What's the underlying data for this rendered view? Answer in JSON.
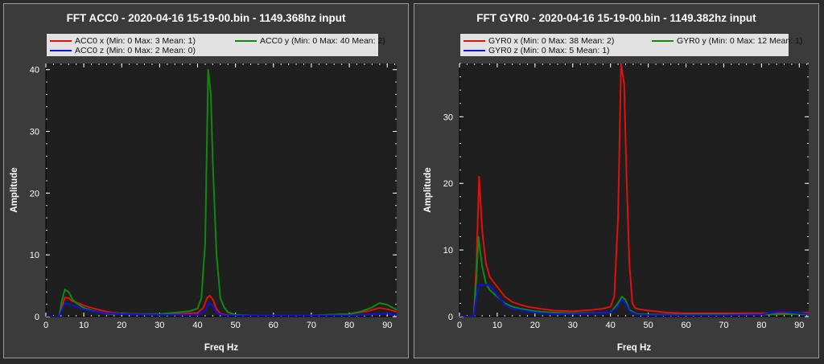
{
  "colors": {
    "background": "#2b2b2b",
    "panel": "#3b3b3b",
    "plot_area": "#1f1f1f",
    "x": "#e01010",
    "y": "#0f8a0f",
    "z": "#1010e0",
    "text": "#ffffff"
  },
  "chart_data": [
    {
      "type": "line",
      "title": "FFT ACC0 - 2020-04-16 15-19-00.bin - 1149.368hz input",
      "xlabel": "Freq Hz",
      "ylabel": "Amplitude",
      "xlim": [
        0,
        92.5
      ],
      "ylim": [
        0,
        41
      ],
      "xticks": [
        0,
        10,
        20,
        30,
        40,
        50,
        60,
        70,
        80,
        90
      ],
      "yticks": [
        0,
        10,
        20,
        30,
        40
      ],
      "legend_position": "top",
      "series": [
        {
          "name": "ACC0 x (Min: 0 Max: 3 Mean: 1)",
          "color": "#e01010",
          "x": [
            0,
            3.5,
            4.2,
            5,
            6,
            7,
            8,
            9,
            10,
            12,
            14,
            16,
            18,
            20,
            25,
            30,
            35,
            40,
            41.5,
            42.5,
            43.2,
            44,
            45,
            46,
            47,
            50,
            60,
            70,
            80,
            85,
            88,
            90,
            92.5
          ],
          "y": [
            0,
            0,
            1.5,
            3.1,
            3,
            2.5,
            2.3,
            2.1,
            1.8,
            1.4,
            1.1,
            0.8,
            0.6,
            0.5,
            0.4,
            0.4,
            0.4,
            0.6,
            1.4,
            3,
            3.4,
            2.8,
            1.2,
            0.5,
            0.3,
            0.2,
            0.2,
            0.2,
            0.4,
            0.9,
            1.4,
            1.2,
            0.8
          ]
        },
        {
          "name": "ACC0 y (Min: 0 Max: 40 Mean: 2)",
          "color": "#0f8a0f",
          "x": [
            0,
            3.5,
            4.2,
            5,
            6,
            7,
            8,
            9,
            10,
            12,
            14,
            16,
            18,
            20,
            25,
            30,
            35,
            38,
            40,
            41,
            42,
            42.8,
            43.5,
            44,
            45,
            46,
            47,
            48,
            50,
            55,
            60,
            70,
            80,
            83,
            86,
            88,
            90,
            92.5
          ],
          "y": [
            0,
            0,
            2.5,
            4.4,
            4,
            2.8,
            2.2,
            1.8,
            1.4,
            1,
            0.7,
            0.5,
            0.4,
            0.5,
            0.4,
            0.4,
            0.7,
            0.9,
            1.3,
            3,
            12,
            40,
            36,
            25,
            10,
            3,
            1.5,
            0.7,
            0.3,
            0.2,
            0.2,
            0.2,
            0.4,
            0.8,
            1.5,
            2.2,
            1.9,
            1.1
          ]
        },
        {
          "name": "ACC0 z (Min: 0 Max: 2 Mean: 0)",
          "color": "#1010e0",
          "x": [
            0,
            3.5,
            4.2,
            5,
            6,
            7,
            8,
            10,
            12,
            15,
            20,
            30,
            40,
            42,
            43,
            44,
            45,
            47,
            50,
            60,
            70,
            80,
            90,
            92.5
          ],
          "y": [
            0,
            0,
            1,
            2.2,
            2,
            1.8,
            1.6,
            1.2,
            0.9,
            0.6,
            0.4,
            0.3,
            0.3,
            0.9,
            2.2,
            1.8,
            0.6,
            0.2,
            0.2,
            0.2,
            0.2,
            0.2,
            0.5,
            0.3
          ]
        }
      ]
    },
    {
      "type": "line",
      "title": "FFT GYR0 - 2020-04-16 15-19-00.bin - 1149.382hz input",
      "xlabel": "Freq Hz",
      "ylabel": "Amplitude",
      "xlim": [
        0,
        92.5
      ],
      "ylim": [
        0,
        38
      ],
      "xticks": [
        0,
        10,
        20,
        30,
        40,
        50,
        60,
        70,
        80,
        90
      ],
      "yticks": [
        0,
        10,
        20,
        30
      ],
      "legend_position": "top",
      "series": [
        {
          "name": "GYR0 x (Min: 0 Max: 38 Mean: 2)",
          "color": "#e01010",
          "x": [
            0,
            3.8,
            4.5,
            5.2,
            6,
            7,
            8,
            9,
            10,
            12,
            14,
            16,
            18,
            20,
            25,
            30,
            35,
            38,
            40,
            41,
            42,
            42.8,
            43.6,
            44.2,
            45,
            45.8,
            46.5,
            47.5,
            50,
            55,
            60,
            70,
            80,
            85,
            90,
            92.5
          ],
          "y": [
            0,
            0,
            8,
            21,
            13,
            8,
            6,
            5.2,
            4.5,
            3,
            2.2,
            1.8,
            1.5,
            1.3,
            0.9,
            0.8,
            1,
            1.2,
            1.5,
            3,
            15,
            38,
            35,
            22,
            8,
            2,
            1.3,
            1.1,
            0.9,
            0.6,
            0.5,
            0.5,
            0.5,
            0.5,
            0.5,
            0.6
          ]
        },
        {
          "name": "GYR0 y (Min: 0 Max: 12 Mean: 1)",
          "color": "#0f8a0f",
          "x": [
            0,
            3.8,
            4.5,
            5,
            6,
            7,
            8,
            9,
            10,
            12,
            14,
            16,
            18,
            20,
            25,
            30,
            40,
            42,
            43,
            44,
            45,
            47,
            50,
            60,
            70,
            80,
            90,
            92.5
          ],
          "y": [
            0,
            0,
            6,
            12,
            7.5,
            5,
            4,
            3.5,
            3,
            2,
            1.5,
            1.2,
            1,
            0.8,
            0.6,
            0.5,
            0.6,
            2,
            3,
            2.5,
            1,
            0.4,
            0.3,
            0.3,
            0.3,
            0.3,
            0.4,
            0.3
          ]
        },
        {
          "name": "GYR0 z (Min: 0 Max: 5 Mean: 1)",
          "color": "#1010e0",
          "x": [
            0,
            3.8,
            4.5,
            5.2,
            6,
            7,
            8,
            9,
            10,
            12,
            14,
            16,
            18,
            20,
            25,
            30,
            40,
            42,
            43,
            44,
            45,
            47,
            50,
            60,
            70,
            80,
            85,
            88,
            90,
            92.5
          ],
          "y": [
            0,
            0,
            3,
            4.8,
            4.7,
            4.8,
            4.6,
            4,
            3.2,
            1.8,
            1.2,
            1,
            0.8,
            0.6,
            0.4,
            0.4,
            0.6,
            1.5,
            2.5,
            2,
            0.8,
            0.3,
            0.2,
            0.2,
            0.2,
            0.3,
            0.8,
            0.6,
            0.5,
            0.4
          ]
        }
      ]
    }
  ]
}
